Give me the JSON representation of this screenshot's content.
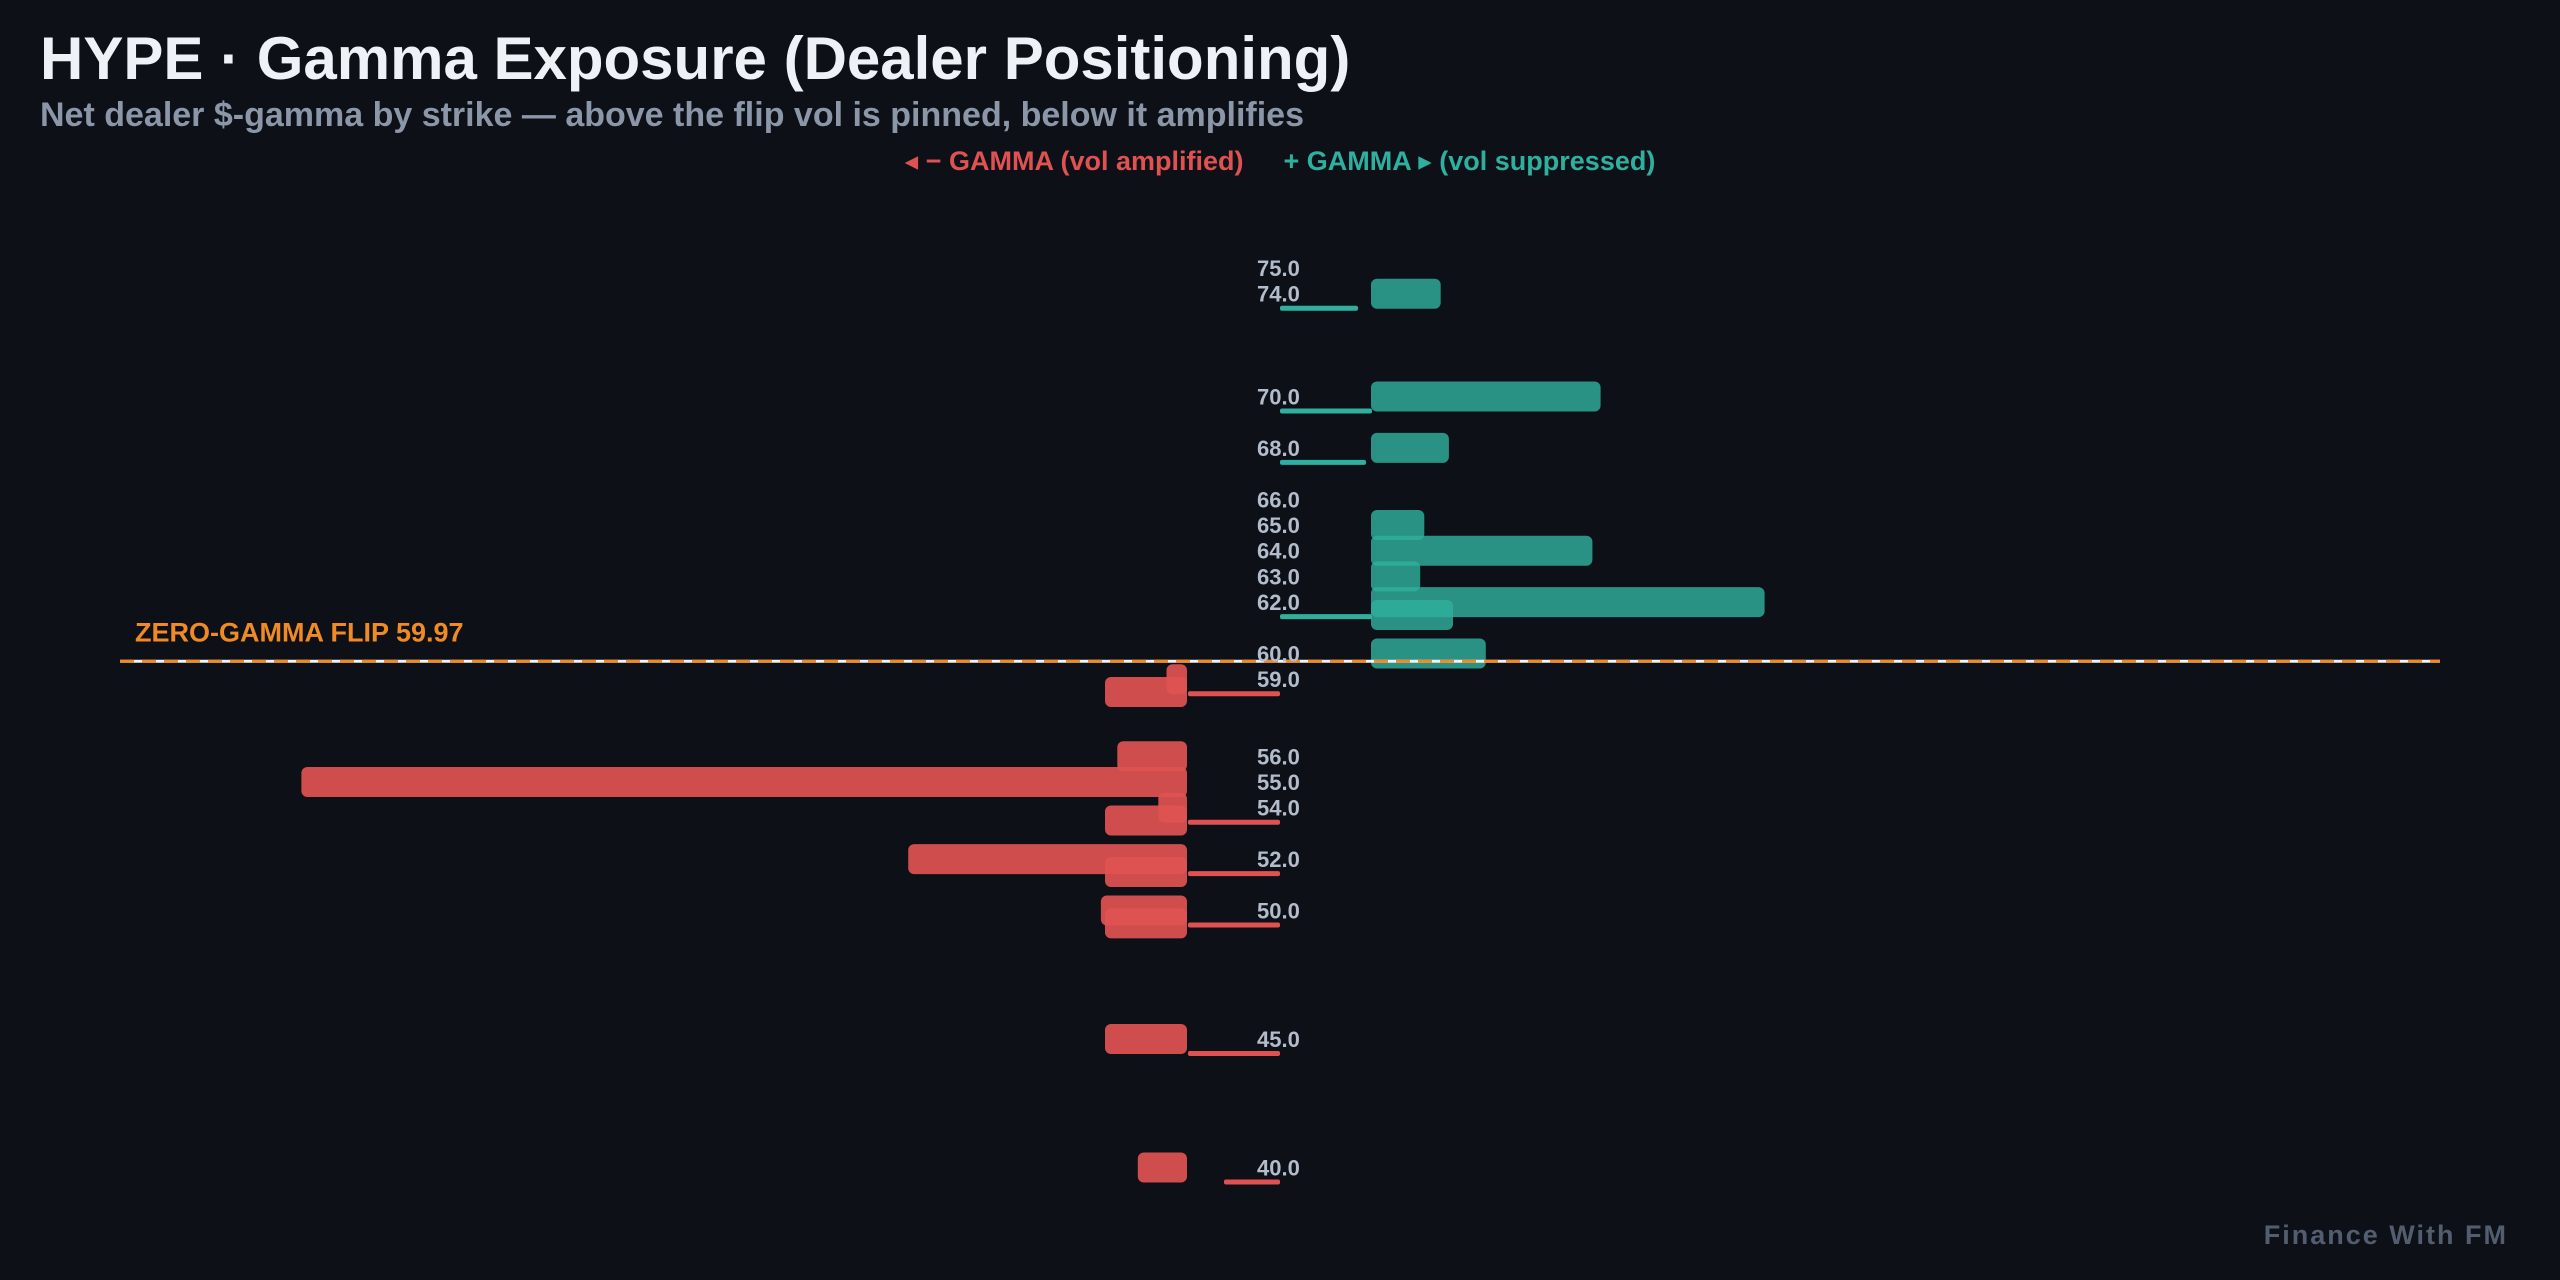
{
  "header": {
    "title": "HYPE · Gamma Exposure (Dealer Positioning)",
    "subtitle": "Net dealer $-gamma by strike — above the flip vol is pinned, below it amplifies"
  },
  "legend": {
    "negative_label": "◂ − GAMMA (vol amplified)",
    "positive_label": "+ GAMMA ▸ (vol suppressed)"
  },
  "watermark": "Finance With FM",
  "colors": {
    "background": "#0d1017",
    "negative": "#e05252",
    "positive": "#2fb09e",
    "flip": "#f08a24",
    "tick_label": "#b3bccb"
  },
  "chart_data": {
    "type": "bar",
    "orientation": "horizontal",
    "title": "HYPE · Gamma Exposure (Dealer Positioning)",
    "subtitle": "Net dealer $-gamma by strike — above the flip vol is pinned, below it amplifies",
    "series": [
      {
        "name": "◂ − GAMMA (vol amplified)",
        "sign": "negative"
      },
      {
        "name": "+ GAMMA ▸ (vol suppressed)",
        "sign": "positive"
      }
    ],
    "strike_labels": [
      "75.0",
      "74.0",
      "70.0",
      "68.0",
      "66.0",
      "65.0",
      "64.0",
      "63.0",
      "62.0",
      "60.0",
      "59.0",
      "56.0",
      "55.0",
      "54.0",
      "52.0",
      "50.0",
      "45.0",
      "40.0"
    ],
    "y_range": [
      38,
      77
    ],
    "x_range": [
      -110,
      130
    ],
    "bars": [
      {
        "strike": 74,
        "value": 8.5
      },
      {
        "strike": 70,
        "value": 28
      },
      {
        "strike": 68,
        "value": 9.5
      },
      {
        "strike": 65,
        "value": 6.5
      },
      {
        "strike": 64,
        "value": 27
      },
      {
        "strike": 63,
        "value": 6
      },
      {
        "strike": 62,
        "value": 48
      },
      {
        "strike": 61.5,
        "value": 10
      },
      {
        "strike": 60,
        "value": 14
      },
      {
        "strike": 59,
        "value": -2.5
      },
      {
        "strike": 58.5,
        "value": -10
      },
      {
        "strike": 56,
        "value": -8.5
      },
      {
        "strike": 55,
        "value": -108
      },
      {
        "strike": 54,
        "value": -3.5
      },
      {
        "strike": 53.5,
        "value": -10
      },
      {
        "strike": 52,
        "value": -34
      },
      {
        "strike": 51.5,
        "value": -10
      },
      {
        "strike": 50,
        "value": -10.5
      },
      {
        "strike": 49.5,
        "value": -10
      },
      {
        "strike": 45,
        "value": -10
      },
      {
        "strike": 40,
        "value": -6
      }
    ],
    "flip": {
      "strike": 59.97,
      "label": "ZERO-GAMMA FLIP 59.97"
    },
    "grid": false
  }
}
